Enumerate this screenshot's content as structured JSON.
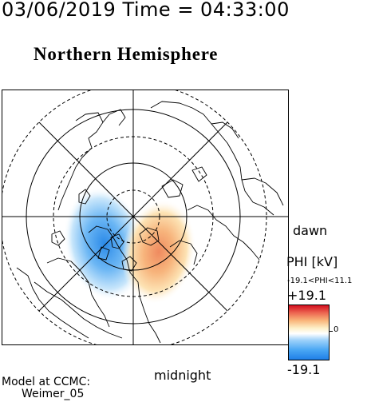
{
  "header": {
    "timestamp": "03/06/2019 Time = 04:33:00"
  },
  "map": {
    "title": "Northern Hemisphere",
    "dawn_label": "dawn",
    "midnight_label": "midnight"
  },
  "colorbar": {
    "title": "PHI [kV]",
    "range_text": "-19.1<PHI<11.1",
    "max_label": "+19.1",
    "min_label": "-19.1",
    "zero_label": "0",
    "colors": [
      "#1f7fe8",
      "#9fd2fa",
      "#ffffff",
      "#f9b57a",
      "#d40f1f"
    ]
  },
  "model": {
    "line1": "Model at CCMC:",
    "line2": "Weimer_05"
  }
}
